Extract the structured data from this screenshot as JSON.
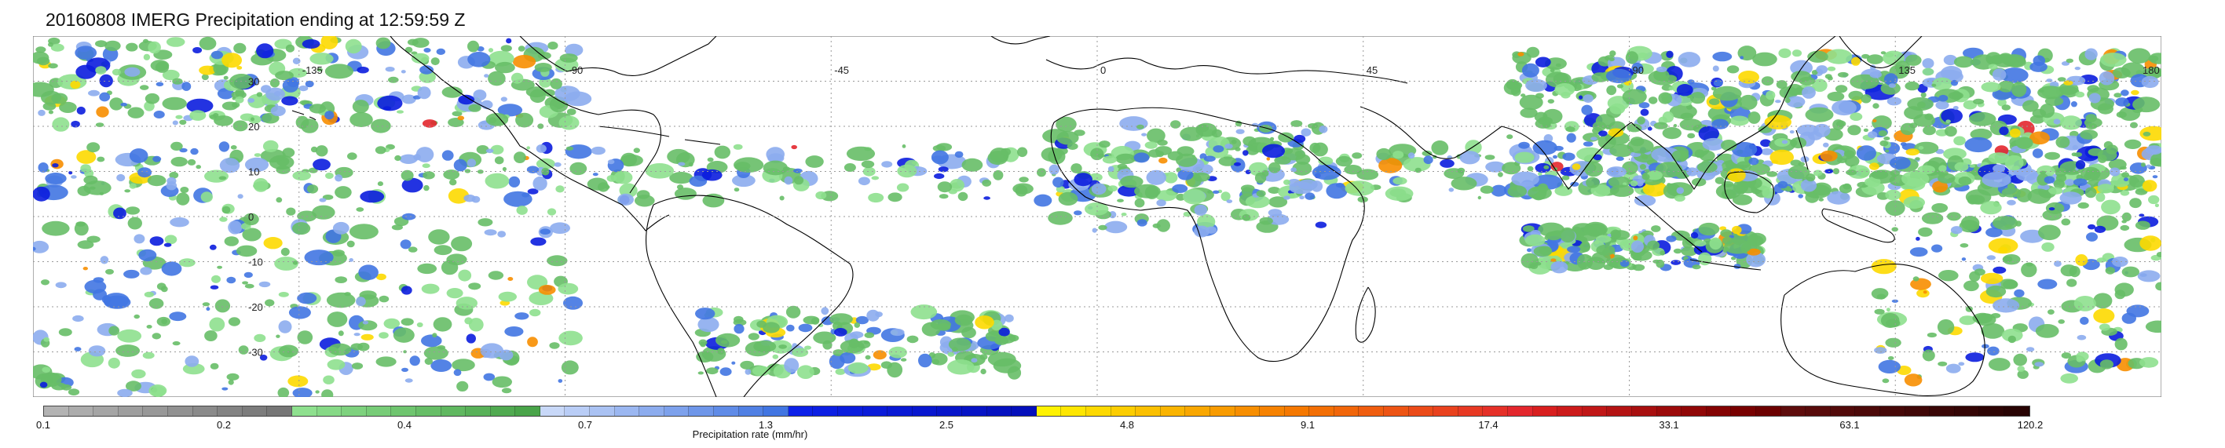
{
  "title": "20160808 IMERG Precipitation ending at 12:59:59 Z",
  "map": {
    "projection": "equirectangular",
    "lon_range": [
      -180,
      180
    ],
    "lat_range": [
      -40,
      40
    ],
    "gridlines": "dotted",
    "lat_labels": [
      "30",
      "20",
      "10",
      "0",
      "-10",
      "-20",
      "-30"
    ],
    "lat_values": [
      30,
      20,
      10,
      0,
      -10,
      -20,
      -30
    ],
    "lon_labels": [
      "-135",
      "-90",
      "-45",
      "0",
      "45",
      "90",
      "135",
      "180"
    ],
    "lon_values": [
      -135,
      -90,
      -45,
      0,
      45,
      90,
      135,
      180
    ],
    "coast_color": "#000000",
    "grid_color": "#999999"
  },
  "colorbar": {
    "label": "Precipitation rate (mm/hr)",
    "tick_labels": [
      "0.1",
      "0.2",
      "0.4",
      "0.7",
      "1.3",
      "2.5",
      "4.8",
      "9.1",
      "17.4",
      "33.1",
      "63.1",
      "120.2"
    ],
    "colors": [
      "#b3b3b3",
      "#acacac",
      "#a5a5a5",
      "#9e9e9e",
      "#989898",
      "#919191",
      "#8a8a8a",
      "#838383",
      "#7c7c7c",
      "#767676",
      "#8ee08e",
      "#86d986",
      "#7ed27e",
      "#77cc77",
      "#6fc56f",
      "#67be67",
      "#60b860",
      "#58b158",
      "#50aa50",
      "#49a449",
      "#c8d8f8",
      "#b9cdf6",
      "#aac2f3",
      "#9bb7f1",
      "#8cacee",
      "#7da1ec",
      "#6e96e9",
      "#5f8be7",
      "#5080e4",
      "#4175e2",
      "#0d21e8",
      "#0c1fe3",
      "#0b1dde",
      "#0a1bd9",
      "#0919d4",
      "#0817cf",
      "#0715ca",
      "#0613c5",
      "#0511c0",
      "#040fbb",
      "#fff200",
      "#fee600",
      "#fdd900",
      "#fccd00",
      "#fbc000",
      "#fab400",
      "#f9a700",
      "#f89b00",
      "#f78e00",
      "#f68200",
      "#f57800",
      "#f36f05",
      "#f1660a",
      "#ef5d0f",
      "#ed5414",
      "#eb4b19",
      "#e9421e",
      "#e73923",
      "#e53028",
      "#e3272d",
      "#d81f1f",
      "#cc1b1b",
      "#c01717",
      "#b41313",
      "#a80f0f",
      "#9c0b0b",
      "#900707",
      "#840303",
      "#780000",
      "#6c0000",
      "#5e0c0c",
      "#580b0b",
      "#520a0a",
      "#4c0909",
      "#460808",
      "#400707",
      "#3a0606",
      "#340505",
      "#2e0404",
      "#280303"
    ]
  },
  "precip": {
    "rain_colors": [
      "#67be67",
      "#8cacee",
      "#4175e2",
      "#0b1dde",
      "#fdd900",
      "#f78e00",
      "#e3272d",
      "#8ee08e"
    ]
  }
}
